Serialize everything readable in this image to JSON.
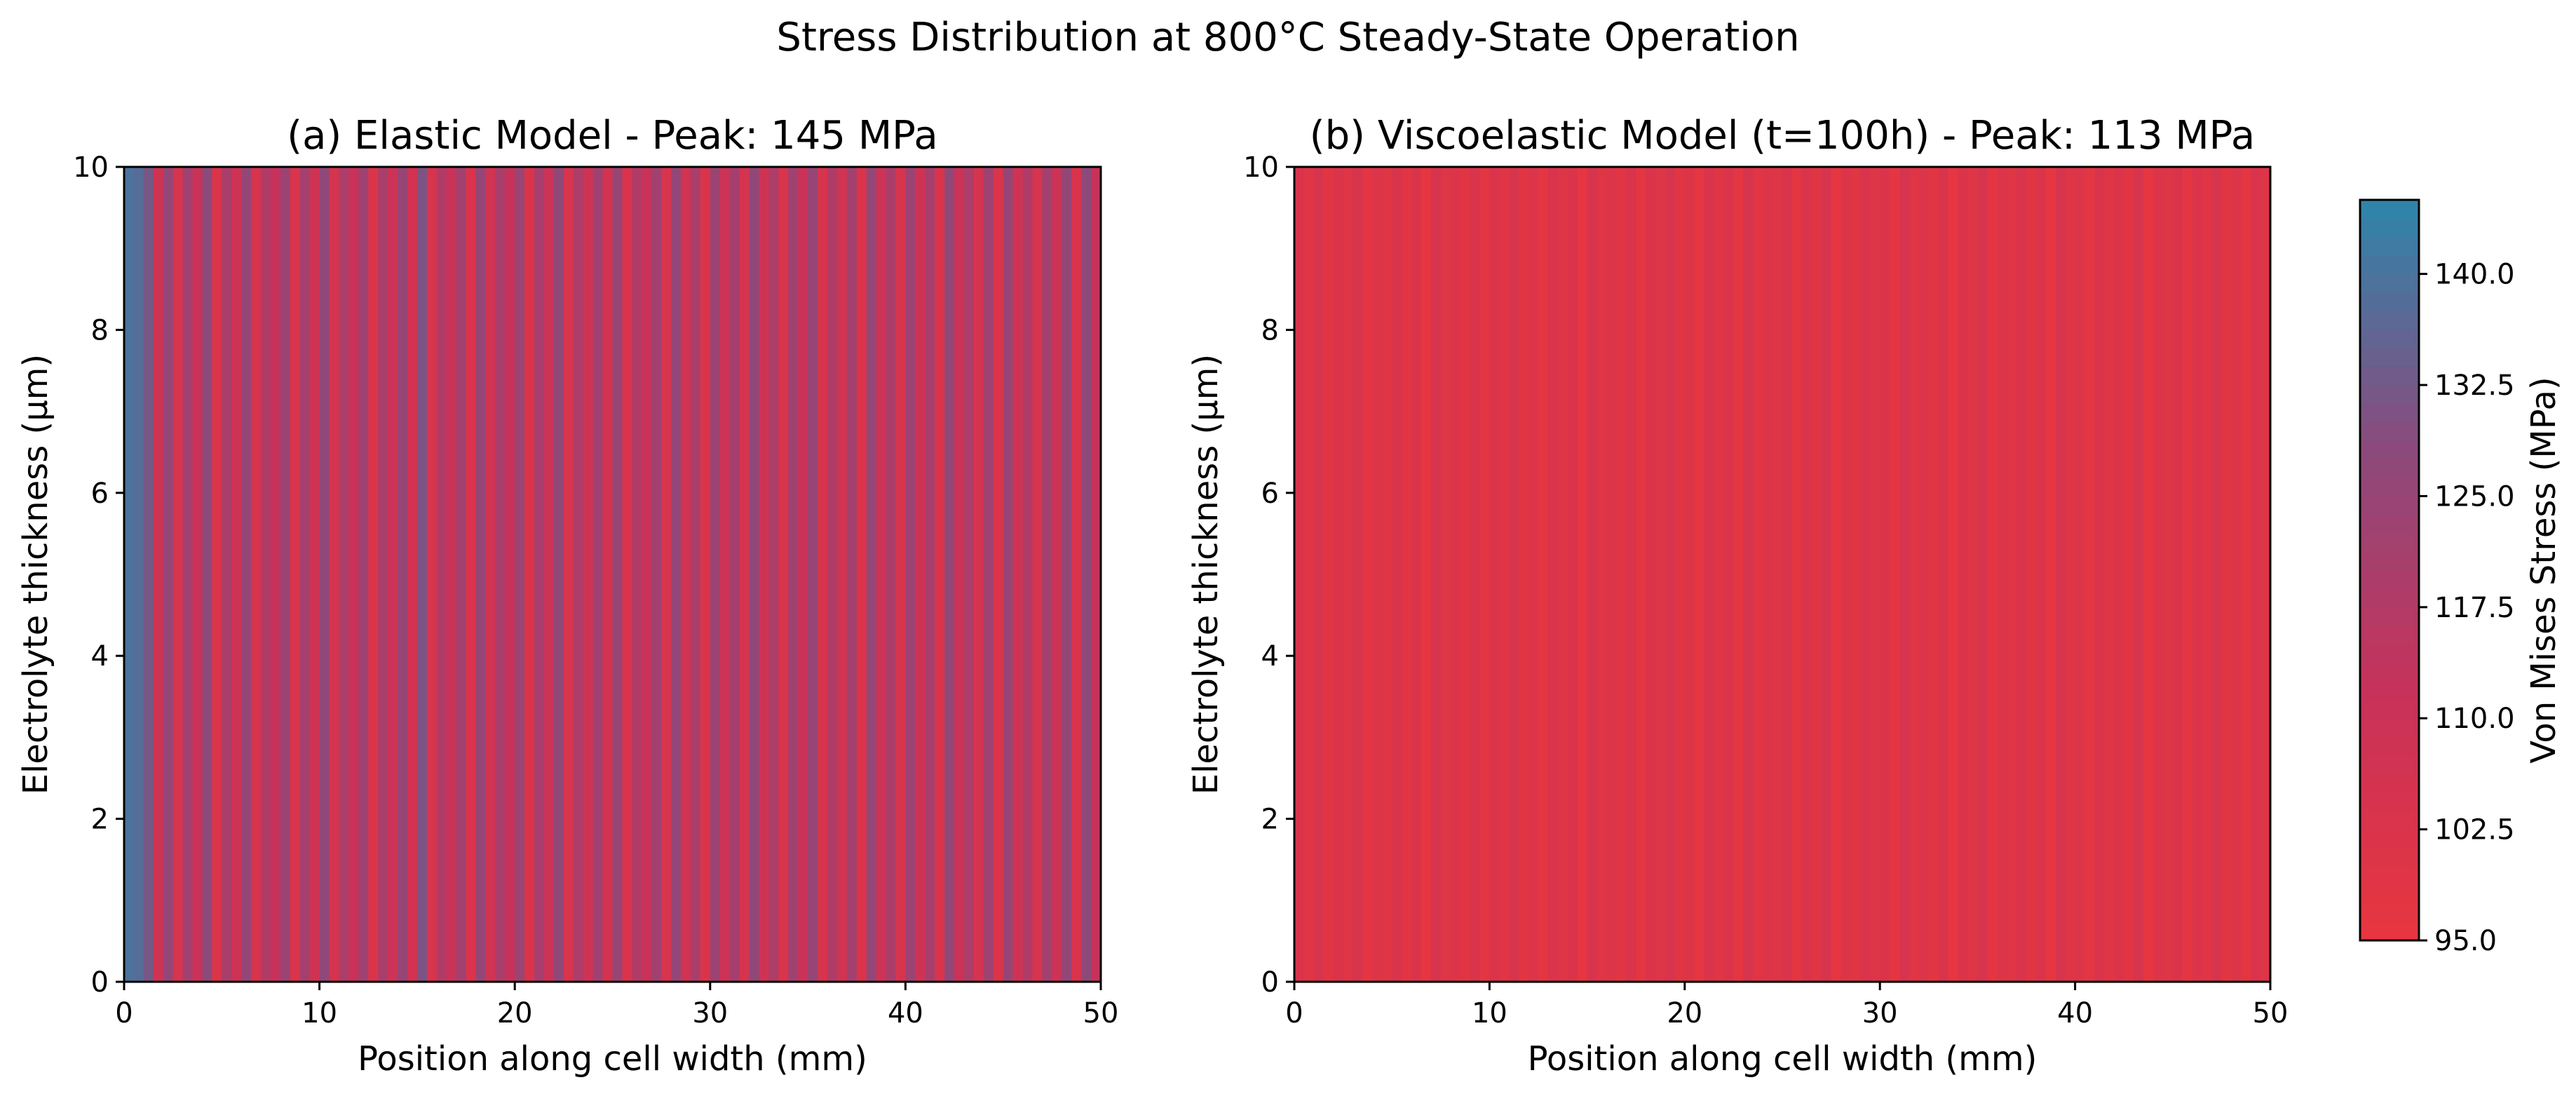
{
  "chart_data": {
    "type": "heatmap",
    "title": "Stress Distribution at 800°C Steady-State Operation",
    "grid": false,
    "panels": [
      {
        "title": "(a) Elastic Model - Peak: 145 MPa",
        "xlabel": "Position along cell width (mm)",
        "ylabel": "Electrolyte thickness (μm)",
        "xlim": [
          0,
          50
        ],
        "ylim": [
          0,
          10
        ],
        "xticks": [
          "0",
          "10",
          "20",
          "30",
          "40",
          "50"
        ],
        "yticks": [
          "0",
          "2",
          "4",
          "6",
          "8",
          "10"
        ],
        "peak_mpa": 145,
        "profile_x": [
          0,
          0.5,
          1,
          1.5,
          2,
          2.5,
          3,
          3.5,
          4,
          4.5,
          5,
          5.5,
          6,
          6.5,
          7,
          7.5,
          8,
          8.5,
          9,
          9.5,
          10,
          10.5,
          11,
          11.5,
          12,
          12.5,
          13,
          13.5,
          14,
          14.5,
          15,
          15.5,
          16,
          16.5,
          17,
          17.5,
          18,
          18.5,
          19,
          19.5,
          20,
          20.5,
          21,
          21.5,
          22,
          22.5,
          23,
          23.5,
          24,
          24.5,
          25,
          25.5,
          26,
          26.5,
          27,
          27.5,
          28,
          28.5,
          29,
          29.5,
          30,
          30.5,
          31,
          31.5,
          32,
          32.5,
          33,
          33.5,
          34,
          34.5,
          35,
          35.5,
          36,
          36.5,
          37,
          37.5,
          38,
          38.5,
          39,
          39.5,
          40,
          40.5,
          41,
          41.5,
          42,
          42.5,
          43,
          43.5,
          44,
          44.5,
          45,
          45.5,
          46,
          46.5,
          47,
          47.5,
          48,
          48.5,
          49,
          49.5,
          50
        ],
        "profile_stress_mpa": [
          140,
          138,
          132,
          108,
          126,
          104,
          122,
          110,
          128,
          102,
          120,
          108,
          126,
          104,
          118,
          112,
          124,
          103,
          121,
          108,
          127,
          105,
          119,
          111,
          123,
          102,
          120,
          109,
          125,
          106,
          131,
          104,
          118,
          110,
          122,
          103,
          126,
          107,
          120,
          112,
          124,
          102,
          121,
          109,
          127,
          104,
          119,
          108,
          123,
          106,
          125,
          103,
          118,
          111,
          122,
          104,
          126,
          107,
          120,
          102,
          124,
          109,
          121,
          105,
          127,
          108,
          119,
          103,
          123,
          110,
          125,
          104,
          118,
          107,
          122,
          102,
          126,
          109,
          120,
          104,
          124,
          108,
          121,
          103,
          127,
          110,
          119,
          105,
          123,
          102,
          125,
          108,
          118,
          104,
          122,
          109,
          126,
          103,
          128,
          112,
          136
        ]
      },
      {
        "title": "(b) Viscoelastic Model (t=100h) - Peak: 113 MPa",
        "xlabel": "Position along cell width (mm)",
        "ylabel": "Electrolyte thickness (μm)",
        "xlim": [
          0,
          50
        ],
        "ylim": [
          0,
          10
        ],
        "xticks": [
          "0",
          "10",
          "20",
          "30",
          "40",
          "50"
        ],
        "yticks": [
          "0",
          "2",
          "4",
          "6",
          "8",
          "10"
        ],
        "peak_mpa": 113,
        "profile_x": [
          0,
          0.5,
          1,
          1.5,
          2,
          2.5,
          3,
          3.5,
          4,
          4.5,
          5,
          5.5,
          6,
          6.5,
          7,
          7.5,
          8,
          8.5,
          9,
          9.5,
          10,
          10.5,
          11,
          11.5,
          12,
          12.5,
          13,
          13.5,
          14,
          14.5,
          15,
          15.5,
          16,
          16.5,
          17,
          17.5,
          18,
          18.5,
          19,
          19.5,
          20,
          20.5,
          21,
          21.5,
          22,
          22.5,
          23,
          23.5,
          24,
          24.5,
          25,
          25.5,
          26,
          26.5,
          27,
          27.5,
          28,
          28.5,
          29,
          29.5,
          30,
          30.5,
          31,
          31.5,
          32,
          32.5,
          33,
          33.5,
          34,
          34.5,
          35,
          35.5,
          36,
          36.5,
          37,
          37.5,
          38,
          38.5,
          39,
          39.5,
          40,
          40.5,
          41,
          41.5,
          42,
          42.5,
          43,
          43.5,
          44,
          44.5,
          45,
          45.5,
          46,
          46.5,
          47,
          47.5,
          48,
          48.5,
          49,
          49.5,
          50
        ],
        "profile_stress_mpa": [
          103,
          99,
          104,
          98,
          102,
          100,
          104,
          97,
          101,
          99,
          103,
          98,
          102,
          96,
          104,
          100,
          101,
          98,
          103,
          97,
          102,
          99,
          104,
          98,
          101,
          97,
          103,
          100,
          102,
          96,
          104,
          99,
          101,
          98,
          103,
          97,
          102,
          100,
          104,
          98,
          101,
          96,
          103,
          99,
          102,
          97,
          104,
          98,
          101,
          100,
          103,
          97,
          102,
          99,
          104,
          96,
          101,
          98,
          103,
          100,
          102,
          97,
          104,
          99,
          101,
          98,
          103,
          96,
          102,
          100,
          104,
          97,
          101,
          99,
          103,
          98,
          102,
          96,
          104,
          100,
          101,
          97,
          103,
          99,
          102,
          98,
          104,
          96,
          101,
          100,
          103,
          97,
          102,
          99,
          104,
          98,
          101,
          97,
          103,
          100,
          102
        ]
      }
    ],
    "colorbar": {
      "label": "Von Mises Stress (MPa)",
      "range": [
        95,
        145
      ],
      "ticks": [
        "95.0",
        "102.5",
        "110.0",
        "117.5",
        "125.0",
        "132.5",
        "140.0"
      ],
      "colors": [
        "#e8363f",
        "#c8325a",
        "#8b4a7c",
        "#2e86ab"
      ]
    }
  }
}
